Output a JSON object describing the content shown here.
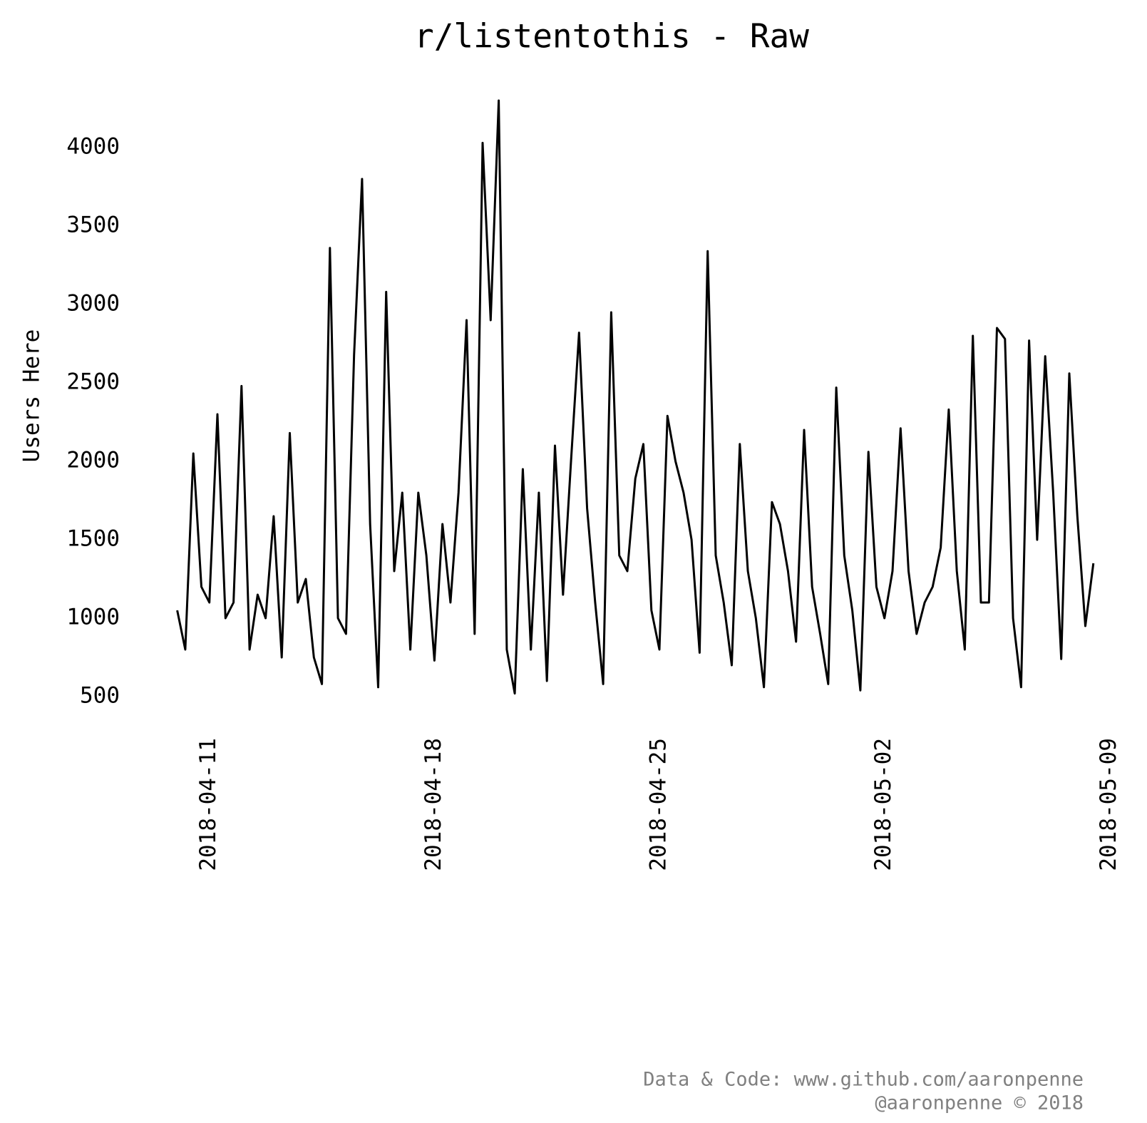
{
  "chart_data": {
    "type": "line",
    "title": "r/listentothis - Raw",
    "ylabel": "Users Here",
    "footer": [
      "Data & Code: www.github.com/aaronpenne",
      "@aaronpenne © 2018"
    ],
    "xlim": [
      "2018-04-09 21:00",
      "2018-05-09 03:00"
    ],
    "xticks": [
      "2018-04-11",
      "2018-04-18",
      "2018-04-25",
      "2018-05-02",
      "2018-05-09"
    ],
    "ylim": [
      400,
      4400
    ],
    "yticks": [
      500,
      1000,
      1500,
      2000,
      2500,
      3000,
      3500,
      4000
    ],
    "grid": false,
    "x": [
      "2018-04-10 00:00",
      "2018-04-10 06:00",
      "2018-04-10 12:00",
      "2018-04-10 18:00",
      "2018-04-11 00:00",
      "2018-04-11 06:00",
      "2018-04-11 12:00",
      "2018-04-11 18:00",
      "2018-04-12 00:00",
      "2018-04-12 06:00",
      "2018-04-12 12:00",
      "2018-04-12 18:00",
      "2018-04-13 00:00",
      "2018-04-13 06:00",
      "2018-04-13 12:00",
      "2018-04-13 18:00",
      "2018-04-14 00:00",
      "2018-04-14 06:00",
      "2018-04-14 12:00",
      "2018-04-14 18:00",
      "2018-04-15 00:00",
      "2018-04-15 06:00",
      "2018-04-15 12:00",
      "2018-04-15 18:00",
      "2018-04-16 00:00",
      "2018-04-16 06:00",
      "2018-04-16 12:00",
      "2018-04-16 18:00",
      "2018-04-17 00:00",
      "2018-04-17 06:00",
      "2018-04-17 12:00",
      "2018-04-17 18:00",
      "2018-04-18 00:00",
      "2018-04-18 06:00",
      "2018-04-18 12:00",
      "2018-04-18 18:00",
      "2018-04-19 00:00",
      "2018-04-19 06:00",
      "2018-04-19 12:00",
      "2018-04-19 18:00",
      "2018-04-20 00:00",
      "2018-04-20 06:00",
      "2018-04-20 12:00",
      "2018-04-20 18:00",
      "2018-04-21 00:00",
      "2018-04-21 06:00",
      "2018-04-21 12:00",
      "2018-04-21 18:00",
      "2018-04-22 00:00",
      "2018-04-22 06:00",
      "2018-04-22 12:00",
      "2018-04-22 18:00",
      "2018-04-23 00:00",
      "2018-04-23 06:00",
      "2018-04-23 12:00",
      "2018-04-23 18:00",
      "2018-04-24 00:00",
      "2018-04-24 06:00",
      "2018-04-24 12:00",
      "2018-04-24 18:00",
      "2018-04-25 00:00",
      "2018-04-25 06:00",
      "2018-04-25 12:00",
      "2018-04-25 18:00",
      "2018-04-26 00:00",
      "2018-04-26 06:00",
      "2018-04-26 12:00",
      "2018-04-26 18:00",
      "2018-04-27 00:00",
      "2018-04-27 06:00",
      "2018-04-27 12:00",
      "2018-04-27 18:00",
      "2018-04-28 00:00",
      "2018-04-28 06:00",
      "2018-04-28 12:00",
      "2018-04-28 18:00",
      "2018-04-29 00:00",
      "2018-04-29 06:00",
      "2018-04-29 12:00",
      "2018-04-29 18:00",
      "2018-04-30 00:00",
      "2018-04-30 06:00",
      "2018-04-30 12:00",
      "2018-04-30 18:00",
      "2018-05-01 00:00",
      "2018-05-01 06:00",
      "2018-05-01 12:00",
      "2018-05-01 18:00",
      "2018-05-02 00:00",
      "2018-05-02 06:00",
      "2018-05-02 12:00",
      "2018-05-02 18:00",
      "2018-05-03 00:00",
      "2018-05-03 06:00",
      "2018-05-03 12:00",
      "2018-05-03 18:00",
      "2018-05-04 00:00",
      "2018-05-04 06:00",
      "2018-05-04 12:00",
      "2018-05-04 18:00",
      "2018-05-05 00:00",
      "2018-05-05 06:00",
      "2018-05-05 12:00",
      "2018-05-05 18:00",
      "2018-05-06 00:00",
      "2018-05-06 06:00",
      "2018-05-06 12:00",
      "2018-05-06 18:00",
      "2018-05-07 00:00",
      "2018-05-07 06:00",
      "2018-05-07 12:00",
      "2018-05-07 18:00",
      "2018-05-08 00:00",
      "2018-05-08 06:00",
      "2018-05-08 12:00"
    ],
    "series": [
      {
        "name": "Users Here",
        "color": "#000000",
        "values": [
          1050,
          800,
          2050,
          1200,
          1100,
          2300,
          1000,
          1100,
          2480,
          800,
          1150,
          1000,
          1650,
          750,
          2180,
          1100,
          1250,
          750,
          580,
          3360,
          1000,
          900,
          2680,
          3800,
          1600,
          560,
          3080,
          1300,
          1800,
          800,
          1800,
          1400,
          730,
          1600,
          1100,
          1800,
          2900,
          900,
          4030,
          2900,
          4300,
          800,
          520,
          1950,
          800,
          1800,
          600,
          2100,
          1150,
          2000,
          2820,
          1700,
          1100,
          580,
          2950,
          1400,
          1300,
          1890,
          2110,
          1050,
          800,
          2290,
          2000,
          1800,
          1500,
          780,
          3340,
          1400,
          1100,
          700,
          2110,
          1300,
          1000,
          560,
          1740,
          1600,
          1300,
          850,
          2200,
          1200,
          900,
          580,
          2470,
          1400,
          1050,
          540,
          2060,
          1200,
          1000,
          1300,
          2210,
          1300,
          900,
          1100,
          1200,
          1450,
          2330,
          1300,
          800,
          2800,
          1100,
          1100,
          2850,
          2780,
          1000,
          560,
          2770,
          1500,
          2670,
          1800,
          740,
          2560,
          1650,
          950,
          1350
        ]
      }
    ]
  }
}
